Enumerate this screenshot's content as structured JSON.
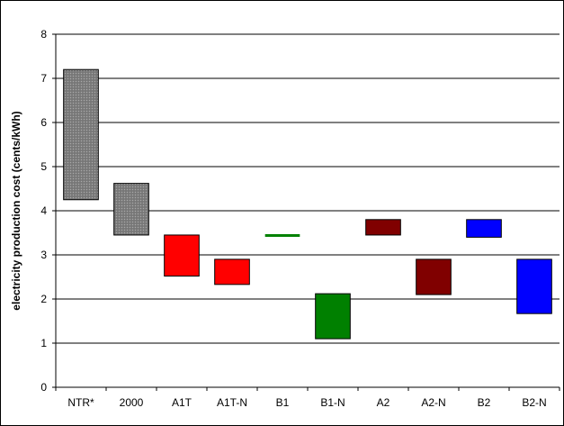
{
  "chart_data": {
    "type": "floating-bar",
    "ylabel": "electricity production cost (cents/kWh)",
    "ylim": [
      0,
      8
    ],
    "yticks": [
      0,
      1,
      2,
      3,
      4,
      5,
      6,
      7,
      8
    ],
    "grid": true,
    "categories": [
      "NTR*",
      "2000",
      "A1T",
      "A1T-N",
      "B1",
      "B1-N",
      "A2",
      "A2-N",
      "B2",
      "B2-N"
    ],
    "ranges": [
      {
        "low": 4.25,
        "high": 7.2,
        "color": "#888888",
        "pattern": true
      },
      {
        "low": 3.45,
        "high": 4.62,
        "color": "#888888",
        "pattern": true
      },
      {
        "low": 2.52,
        "high": 3.45,
        "color": "#ff0000",
        "pattern": false
      },
      {
        "low": 2.33,
        "high": 2.9,
        "color": "#ff0000",
        "pattern": false
      },
      {
        "low": 3.43,
        "high": 3.47,
        "color": "#008000",
        "pattern": false
      },
      {
        "low": 1.1,
        "high": 2.12,
        "color": "#008000",
        "pattern": false
      },
      {
        "low": 3.45,
        "high": 3.8,
        "color": "#800000",
        "pattern": false
      },
      {
        "low": 2.1,
        "high": 2.9,
        "color": "#800000",
        "pattern": false
      },
      {
        "low": 3.4,
        "high": 3.8,
        "color": "#0000ff",
        "pattern": false
      },
      {
        "low": 1.67,
        "high": 2.9,
        "color": "#0000ff",
        "pattern": false
      }
    ]
  }
}
